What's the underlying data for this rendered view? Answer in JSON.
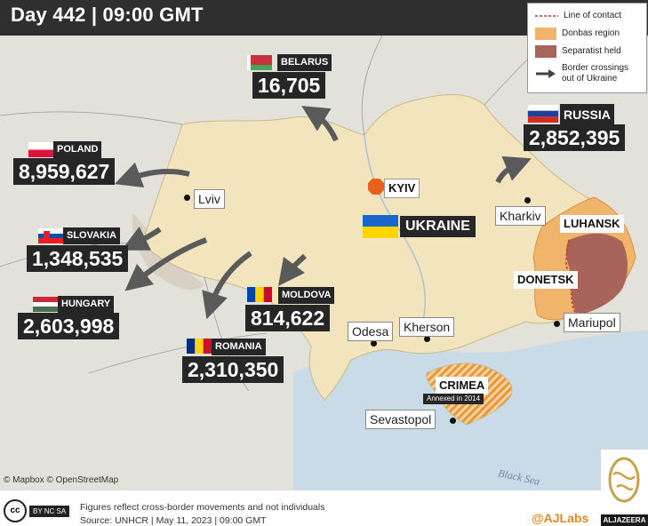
{
  "header": {
    "title": "Day 442 |  09:00 GMT"
  },
  "legend": {
    "line_of_contact": "Line of contact",
    "donbas_region": "Donbas region",
    "separatist_held": "Separatist held",
    "border_crossings_line1": "Border crossings",
    "border_crossings_line2": "out of Ukraine"
  },
  "countries": {
    "belarus": {
      "name": "BELARUS",
      "count": "16,705"
    },
    "russia": {
      "name": "RUSSIA",
      "count": "2,852,395"
    },
    "poland": {
      "name": "POLAND",
      "count": "8,959,627"
    },
    "slovakia": {
      "name": "SLOVAKIA",
      "count": "1,348,535"
    },
    "hungary": {
      "name": "HUNGARY",
      "count": "2,603,998"
    },
    "moldova": {
      "name": "MOLDOVA",
      "count": "814,622"
    },
    "romania": {
      "name": "ROMANIA",
      "count": "2,310,350"
    },
    "ukraine": {
      "name": "UKRAINE"
    }
  },
  "cities": {
    "kyiv": "KYIV",
    "lviv": "Lviv",
    "kharkiv": "Kharkiv",
    "odesa": "Odesa",
    "kherson": "Kherson",
    "mariupol": "Mariupol",
    "sevastopol": "Sevastopol"
  },
  "regions": {
    "luhansk": "LUHANSK",
    "donetsk": "DONETSK",
    "crimea": "CRIMEA",
    "crimea_note": "Annexed in 2014"
  },
  "map": {
    "sea_label": "Black Sea",
    "credit": "© Mapbox © OpenStreetMap"
  },
  "footer": {
    "note": "Figures reflect cross-border movements and not individuals",
    "source": "Source: UNHCR  |  May 11, 2023  |  09:00 GMT",
    "handle": "@AJLabs",
    "cc_label": "cc",
    "cc_sub": "BY  NC  SA",
    "brand": "ALJAZEERA"
  },
  "colors": {
    "ukraine_fill": "#f2e4bd",
    "donbas_fill": "#f0b46a",
    "separatist_fill": "#a8645a",
    "arrow": "#5a5a5a",
    "sea": "#c9dbe7",
    "header_bg": "#2f2f2f",
    "accent_orange": "#e58a1f"
  }
}
